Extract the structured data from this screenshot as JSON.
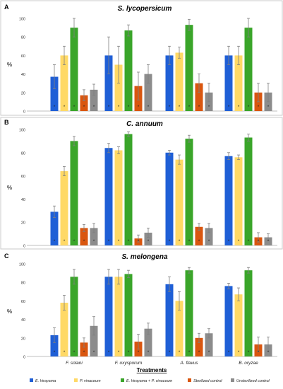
{
  "figure": {
    "xlabel": "Treatments",
    "categories": [
      "F. solani",
      "F. oxysporum",
      "A. flavus",
      "B. oryzae"
    ],
    "legend": [
      {
        "name": "E. hirayama",
        "color": "#1f5fd6"
      },
      {
        "name": "P. vinaceum",
        "color": "#ffd966"
      },
      {
        "name": "E. hirayama + P. vinaceum",
        "color": "#3aa52a"
      },
      {
        "name": "Sterilized control",
        "color": "#d9560f"
      },
      {
        "name": "Unsterilized control",
        "color": "#8c8c8c"
      }
    ]
  },
  "chart_data": [
    {
      "type": "bar",
      "panel_letter": "A",
      "title": "S. lycopersicum",
      "ylabel": "%",
      "ylim": [
        0,
        100
      ],
      "yticks": [
        0,
        20,
        40,
        60,
        80,
        100
      ],
      "grid": false,
      "categories": [
        "F. solani",
        "F. oxysporum",
        "A. flavus",
        "B. oryzae"
      ],
      "series": [
        {
          "name": "E. hirayama",
          "values": [
            37,
            60,
            60,
            60
          ],
          "errors": [
            13,
            20,
            10,
            10
          ]
        },
        {
          "name": "P. vinaceum",
          "values": [
            60,
            50,
            63,
            60
          ],
          "errors": [
            10,
            20,
            6,
            10
          ]
        },
        {
          "name": "E. hirayama + P. vinaceum",
          "values": [
            90,
            87,
            93,
            90
          ],
          "errors": [
            10,
            6,
            6,
            10
          ]
        },
        {
          "name": "Sterilized control",
          "values": [
            17,
            27,
            30,
            20
          ],
          "errors": [
            6,
            15,
            10,
            10
          ]
        },
        {
          "name": "Unsterilized control",
          "values": [
            23,
            40,
            20,
            20
          ],
          "errors": [
            6,
            10,
            10,
            10
          ]
        }
      ],
      "markers": "*"
    },
    {
      "type": "bar",
      "panel_letter": "B",
      "title": "C. annuum",
      "ylabel": "%",
      "ylim": [
        0,
        100
      ],
      "yticks": [
        0,
        20,
        40,
        60,
        80,
        100
      ],
      "grid": false,
      "categories": [
        "F. solani",
        "F. oxysporum",
        "A. flavus",
        "B. oryzae"
      ],
      "series": [
        {
          "name": "E. hirayama",
          "values": [
            29,
            84,
            80,
            77
          ],
          "errors": [
            5,
            4,
            2,
            3
          ]
        },
        {
          "name": "P. vinaceum",
          "values": [
            64,
            82,
            74,
            76
          ],
          "errors": [
            4,
            3,
            4,
            2
          ]
        },
        {
          "name": "E. hirayama + P. vinaceum",
          "values": [
            90,
            96,
            92,
            93
          ],
          "errors": [
            4,
            2,
            3,
            3
          ]
        },
        {
          "name": "Sterilized control",
          "values": [
            15,
            6,
            16,
            7
          ],
          "errors": [
            3,
            3,
            3,
            4
          ]
        },
        {
          "name": "Unsterilized control",
          "values": [
            15,
            11,
            15,
            7
          ],
          "errors": [
            4,
            4,
            4,
            3
          ]
        }
      ],
      "markers": "*"
    },
    {
      "type": "bar",
      "panel_letter": "C",
      "title": "S. melongena",
      "ylabel": "%",
      "ylim": [
        0,
        100
      ],
      "yticks": [
        0,
        20,
        40,
        60,
        80,
        100
      ],
      "grid": false,
      "categories": [
        "F. solani",
        "F. oxysporum",
        "A. flavus",
        "B. oryzae"
      ],
      "series": [
        {
          "name": "E. hirayama",
          "values": [
            23,
            86,
            78,
            76
          ],
          "errors": [
            8,
            8,
            8,
            3
          ]
        },
        {
          "name": "P. vinaceum",
          "values": [
            58,
            86,
            60,
            67
          ],
          "errors": [
            8,
            8,
            10,
            7
          ]
        },
        {
          "name": "E. hirayama + P. vinaceum",
          "values": [
            86,
            89,
            93,
            93
          ],
          "errors": [
            8,
            4,
            3,
            3
          ]
        },
        {
          "name": "Sterilized control",
          "values": [
            15,
            16,
            20,
            13
          ],
          "errors": [
            5,
            8,
            5,
            8
          ]
        },
        {
          "name": "Unsterilized control",
          "values": [
            33,
            30,
            25,
            13
          ],
          "errors": [
            10,
            6,
            5,
            8
          ]
        }
      ],
      "markers": "*"
    }
  ]
}
